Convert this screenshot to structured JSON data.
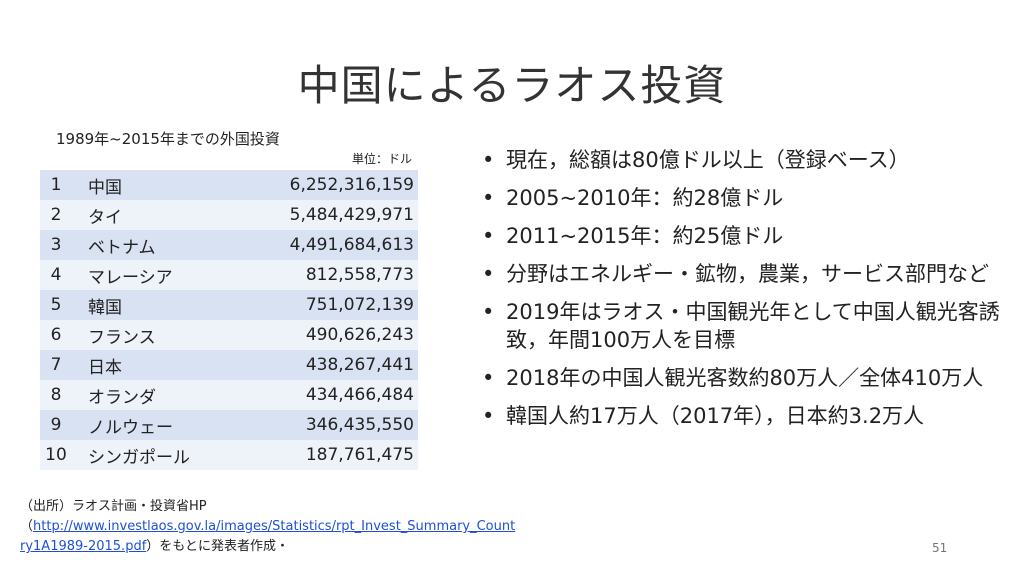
{
  "slide": {
    "title": "中国によるラオス投資",
    "page_number": "51"
  },
  "table": {
    "caption": "1989年~2015年までの外国投資",
    "unit": "単位：ドル",
    "rows": [
      {
        "rank": "1",
        "country": "中国",
        "amount": "6,252,316,159"
      },
      {
        "rank": "2",
        "country": "タイ",
        "amount": "5,484,429,971"
      },
      {
        "rank": "3",
        "country": "ベトナム",
        "amount": "4,491,684,613"
      },
      {
        "rank": "4",
        "country": "マレーシア",
        "amount": "812,558,773"
      },
      {
        "rank": "5",
        "country": "韓国",
        "amount": "751,072,139"
      },
      {
        "rank": "6",
        "country": "フランス",
        "amount": "490,626,243"
      },
      {
        "rank": "7",
        "country": "日本",
        "amount": "438,267,441"
      },
      {
        "rank": "8",
        "country": "オランダ",
        "amount": "434,466,484"
      },
      {
        "rank": "9",
        "country": "ノルウェー",
        "amount": "346,435,550"
      },
      {
        "rank": "10",
        "country": "シンガポール",
        "amount": "187,761,475"
      }
    ]
  },
  "bullets": [
    {
      "text": "現在，総額は80億ドル以上（登録ベース）"
    },
    {
      "text": "2005~2010年：約28億ドル"
    },
    {
      "text": "2011~2015年：約25億ドル"
    },
    {
      "text": "分野はエネルギー・鉱物，農業，サービス部門など"
    },
    {
      "text": "2019年はラオス・中国観光年として中国人観光客誘致，年間100万人を目標"
    },
    {
      "text": "2018年の中国人観光客数約80万人／全体410万人"
    },
    {
      "text": "韓国人約17万人（2017年），日本約3.2万人"
    }
  ],
  "source": {
    "prefix": "（出所）ラオス計画・投資省HP",
    "open_paren": "（",
    "link_text": "http://www.investlaos.gov.la/images/Statistics/rpt_Invest_Summary_Country1A1989-2015.pdf",
    "suffix": "）をもとに発表者作成・"
  }
}
